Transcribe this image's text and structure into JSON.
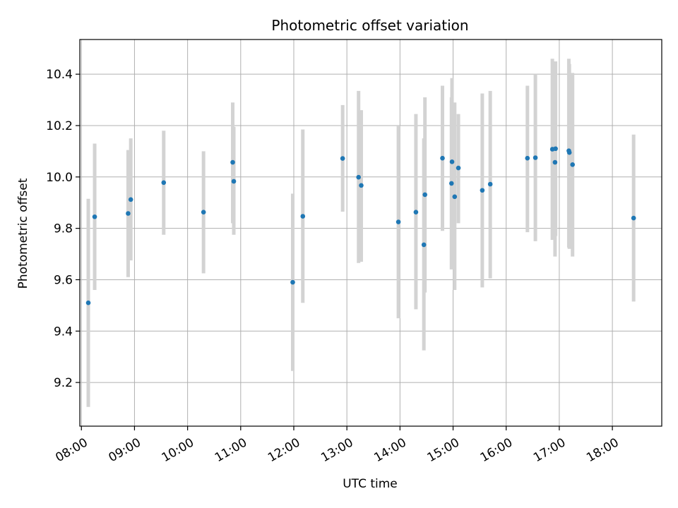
{
  "chart_data": {
    "type": "scatter",
    "title": "Photometric offset variation",
    "xlabel": "UTC time",
    "ylabel": "Photometric offset",
    "x_unit": "hours (UTC, decimal)",
    "xlim": [
      7.97,
      18.93
    ],
    "ylim": [
      9.03,
      10.535
    ],
    "grid": true,
    "x_ticks": [
      {
        "value": 8,
        "label": "08:00"
      },
      {
        "value": 9,
        "label": "09:00"
      },
      {
        "value": 10,
        "label": "10:00"
      },
      {
        "value": 11,
        "label": "11:00"
      },
      {
        "value": 12,
        "label": "12:00"
      },
      {
        "value": 13,
        "label": "13:00"
      },
      {
        "value": 14,
        "label": "14:00"
      },
      {
        "value": 15,
        "label": "15:00"
      },
      {
        "value": 16,
        "label": "16:00"
      },
      {
        "value": 17,
        "label": "17:00"
      },
      {
        "value": 18,
        "label": "18:00"
      }
    ],
    "y_ticks": [
      {
        "value": 9.2,
        "label": "9.2"
      },
      {
        "value": 9.4,
        "label": "9.4"
      },
      {
        "value": 9.6,
        "label": "9.6"
      },
      {
        "value": 9.8,
        "label": "9.8"
      },
      {
        "value": 10.0,
        "label": "10.0"
      },
      {
        "value": 10.2,
        "label": "10.2"
      },
      {
        "value": 10.4,
        "label": "10.4"
      }
    ],
    "marker_color": "#1f77b4",
    "errorbar_color": "#d3d3d3",
    "points": [
      {
        "x": 8.13,
        "y": 9.51,
        "err_low": 9.105,
        "err_high": 9.915
      },
      {
        "x": 8.25,
        "y": 9.845,
        "err_low": 9.56,
        "err_high": 10.13
      },
      {
        "x": 8.88,
        "y": 9.858,
        "err_low": 9.61,
        "err_high": 10.105
      },
      {
        "x": 8.93,
        "y": 9.912,
        "err_low": 9.675,
        "err_high": 10.15
      },
      {
        "x": 9.55,
        "y": 9.978,
        "err_low": 9.775,
        "err_high": 10.18
      },
      {
        "x": 10.3,
        "y": 9.863,
        "err_low": 9.625,
        "err_high": 10.1
      },
      {
        "x": 10.85,
        "y": 10.057,
        "err_low": 9.82,
        "err_high": 10.29
      },
      {
        "x": 10.87,
        "y": 9.983,
        "err_low": 9.775,
        "err_high": 10.195
      },
      {
        "x": 11.98,
        "y": 9.59,
        "err_low": 9.245,
        "err_high": 9.935
      },
      {
        "x": 12.17,
        "y": 9.847,
        "err_low": 9.51,
        "err_high": 10.185
      },
      {
        "x": 12.92,
        "y": 10.072,
        "err_low": 9.865,
        "err_high": 10.28
      },
      {
        "x": 13.22,
        "y": 9.999,
        "err_low": 9.665,
        "err_high": 10.335
      },
      {
        "x": 13.27,
        "y": 9.967,
        "err_low": 9.67,
        "err_high": 10.26
      },
      {
        "x": 13.97,
        "y": 9.825,
        "err_low": 9.45,
        "err_high": 10.2
      },
      {
        "x": 14.3,
        "y": 9.863,
        "err_low": 9.485,
        "err_high": 10.245
      },
      {
        "x": 14.45,
        "y": 9.736,
        "err_low": 9.325,
        "err_high": 10.15
      },
      {
        "x": 14.47,
        "y": 9.931,
        "err_low": 9.55,
        "err_high": 10.31
      },
      {
        "x": 14.8,
        "y": 10.073,
        "err_low": 9.79,
        "err_high": 10.355
      },
      {
        "x": 14.97,
        "y": 9.975,
        "err_low": 9.64,
        "err_high": 10.31
      },
      {
        "x": 14.98,
        "y": 10.059,
        "err_low": 9.73,
        "err_high": 10.385
      },
      {
        "x": 15.03,
        "y": 9.923,
        "err_low": 9.56,
        "err_high": 10.29
      },
      {
        "x": 15.1,
        "y": 10.035,
        "err_low": 9.82,
        "err_high": 10.245
      },
      {
        "x": 15.55,
        "y": 9.948,
        "err_low": 9.57,
        "err_high": 10.325
      },
      {
        "x": 15.7,
        "y": 9.972,
        "err_low": 9.605,
        "err_high": 10.335
      },
      {
        "x": 16.4,
        "y": 10.073,
        "err_low": 9.785,
        "err_high": 10.355
      },
      {
        "x": 16.55,
        "y": 10.075,
        "err_low": 9.75,
        "err_high": 10.4
      },
      {
        "x": 16.87,
        "y": 10.108,
        "err_low": 9.755,
        "err_high": 10.46
      },
      {
        "x": 16.92,
        "y": 10.057,
        "err_low": 9.69,
        "err_high": 10.45
      },
      {
        "x": 16.93,
        "y": 10.11,
        "err_low": 9.77,
        "err_high": 10.45
      },
      {
        "x": 17.18,
        "y": 10.102,
        "err_low": 9.725,
        "err_high": 10.46
      },
      {
        "x": 17.19,
        "y": 10.095,
        "err_low": 9.72,
        "err_high": 10.44
      },
      {
        "x": 17.25,
        "y": 10.048,
        "err_low": 9.69,
        "err_high": 10.405
      },
      {
        "x": 18.4,
        "y": 9.84,
        "err_low": 9.515,
        "err_high": 10.165
      }
    ]
  }
}
